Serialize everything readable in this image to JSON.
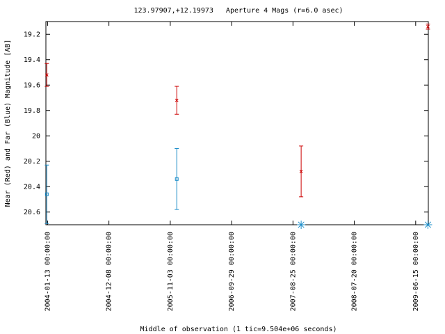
{
  "chart_data": {
    "type": "errorbar",
    "title": "123.97907,+12.19973   Aperture 4 Mags (r=6.0 asec)",
    "xlabel": "Middle of observation (1 tic=9.504e+06 seconds)",
    "ylabel": "Near (Red) and Far (Blue) Magnitude [AB]",
    "x": [
      "2004-01-09 00:00:00",
      "2005-12-08 00:00:00",
      "2007-10-08 00:00:00",
      "2009-08-20 00:00:00"
    ],
    "series": [
      {
        "color": "#cc0000",
        "marker": "x",
        "values": [
          19.52,
          19.72,
          20.28,
          19.14
        ],
        "errors": [
          0.09,
          0.11,
          0.2,
          0.02
        ]
      },
      {
        "color": "#1a8cc8",
        "marker": "square",
        "values": [
          20.46,
          20.34,
          null,
          null
        ],
        "errors": [
          0.23,
          0.24,
          null,
          null
        ]
      }
    ],
    "xlim": [
      "2004-01-04 00:00:00",
      "2009-08-22 00:00:00"
    ],
    "xticks": [
      "2004-01-13 00:00:00",
      "2004-12-08 00:00:00",
      "2005-11-03 00:00:00",
      "2006-09-29 00:00:00",
      "2007-08-25 00:00:00",
      "2008-07-20 00:00:00",
      "2009-06-15 00:00:00"
    ],
    "ylim": [
      20.7,
      19.1
    ],
    "yticks": [
      19.2,
      19.4,
      19.6,
      19.8,
      20,
      20.2,
      20.4,
      20.6
    ]
  }
}
